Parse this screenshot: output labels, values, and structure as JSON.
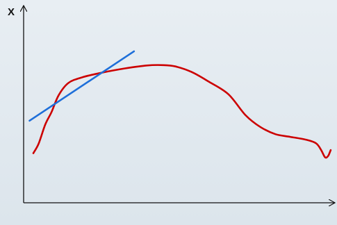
{
  "chart_data": {
    "type": "line",
    "ylabel": "X",
    "xlabel": "",
    "grid": false,
    "legend": "none",
    "xlim": [
      0,
      100
    ],
    "ylim": [
      0,
      100
    ],
    "series": [
      {
        "color": "#cc0000",
        "x": [
          3.1,
          4.8,
          6.9,
          8.9,
          11.2,
          14.3,
          18.9,
          25.6,
          32.4,
          39.4,
          44.7,
          48.6,
          53.7,
          59.3,
          65.5,
          71.0,
          75.7,
          80.5,
          85.3,
          90.4,
          93.5,
          95.1,
          96.4,
          97.4,
          98.2
        ],
        "y": [
          25.5,
          30.4,
          40.2,
          46.6,
          55.3,
          61.6,
          64.6,
          67.1,
          69.1,
          70.6,
          70.8,
          70.1,
          67.3,
          62.2,
          55.8,
          45.0,
          39.0,
          35.3,
          33.9,
          32.4,
          30.6,
          27.3,
          23.4,
          24.1,
          27.1
        ]
      },
      {
        "color": "#1e6fd9",
        "x": [
          1.9,
          35.3
        ],
        "y": [
          42.2,
          77.9
        ]
      }
    ]
  }
}
